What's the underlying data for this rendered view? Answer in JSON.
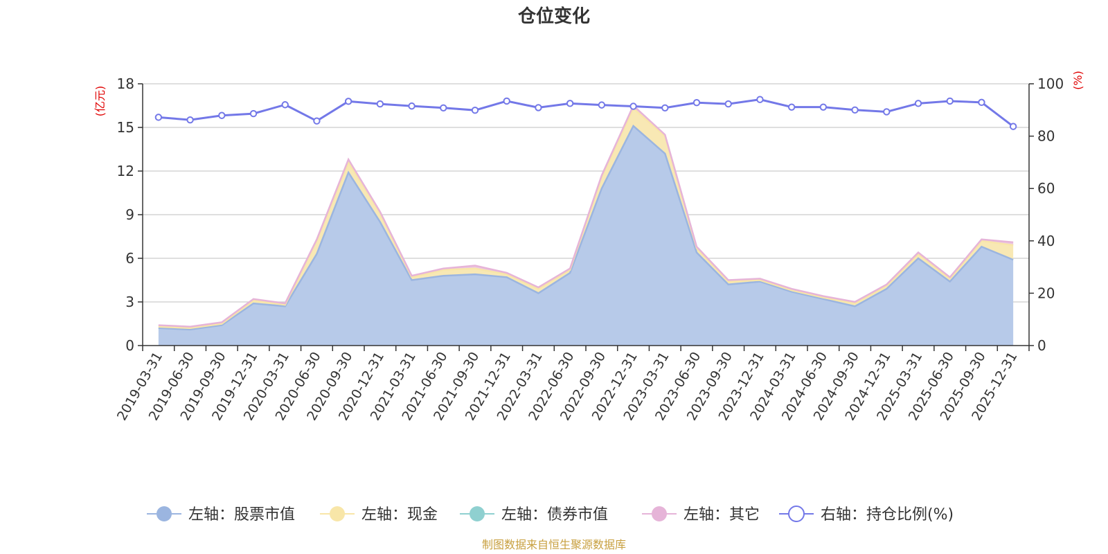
{
  "chart_data": {
    "type": "area",
    "title": "仓位变化",
    "y_left_unit": "(亿元)",
    "y_right_unit": "(%)",
    "y_left_range": [
      0,
      18
    ],
    "y_left_ticks": [
      "0",
      "3",
      "6",
      "9",
      "12",
      "15",
      "18"
    ],
    "y_right_range": [
      0,
      100
    ],
    "y_right_ticks": [
      "0",
      "20",
      "40",
      "60",
      "80",
      "100"
    ],
    "grid": true,
    "legend_position": "bottom",
    "categories": [
      "2019-03-31",
      "2019-06-30",
      "2019-09-30",
      "2019-12-31",
      "2020-03-31",
      "2020-06-30",
      "2020-09-30",
      "2020-12-31",
      "2021-03-31",
      "2021-06-30",
      "2021-09-30",
      "2021-12-31",
      "2022-03-31",
      "2022-06-30",
      "2022-09-30",
      "2022-12-31",
      "2023-03-31",
      "2023-06-30",
      "2023-09-30",
      "2023-12-31",
      "2024-03-31",
      "2024-06-30",
      "2024-09-30",
      "2024-12-31",
      "2025-03-31",
      "2025-06-30",
      "2025-09-30",
      "2025-12-31"
    ],
    "series": [
      {
        "name": "左轴：股票市值",
        "axis": "left",
        "color": "#9bb5e0",
        "fill": "#b7cae9",
        "values": [
          1.2,
          1.1,
          1.4,
          2.9,
          2.7,
          6.3,
          11.9,
          8.5,
          4.5,
          4.8,
          4.9,
          4.7,
          3.6,
          5.0,
          10.8,
          15.1,
          13.2,
          6.4,
          4.2,
          4.4,
          3.7,
          3.2,
          2.7,
          3.9,
          6.0,
          4.4,
          6.8,
          5.9
        ]
      },
      {
        "name": "左轴：现金",
        "axis": "left",
        "color": "#f8e6a8",
        "fill": "#f8e8b4",
        "values": [
          0.1,
          0.1,
          0.1,
          0.2,
          0.1,
          0.9,
          0.7,
          0.6,
          0.2,
          0.4,
          0.4,
          0.2,
          0.3,
          0.2,
          0.8,
          1.2,
          1.2,
          0.3,
          0.2,
          0.1,
          0.1,
          0.1,
          0.2,
          0.2,
          0.3,
          0.2,
          0.4,
          1.0
        ]
      },
      {
        "name": "左轴：债券市值",
        "axis": "left",
        "color": "#8fd0d0",
        "fill": "#a8dcdc",
        "values": [
          0,
          0,
          0,
          0,
          0,
          0,
          0,
          0,
          0,
          0,
          0,
          0,
          0,
          0,
          0,
          0,
          0,
          0,
          0,
          0,
          0,
          0,
          0,
          0,
          0,
          0,
          0,
          0
        ]
      },
      {
        "name": "左轴：其它",
        "axis": "left",
        "color": "#e6b4d8",
        "fill": "#ecc8e0",
        "values": [
          0.1,
          0.1,
          0.1,
          0.1,
          0.1,
          0.1,
          0.2,
          0.1,
          0.1,
          0.1,
          0.2,
          0.1,
          0.1,
          0.1,
          0.1,
          0.2,
          0.1,
          0.1,
          0.1,
          0.1,
          0.1,
          0.1,
          0.1,
          0.1,
          0.1,
          0.1,
          0.1,
          0.2
        ]
      },
      {
        "name": "右轴：持仓比例(%)",
        "axis": "right",
        "color": "#7378e8",
        "values": [
          87.2,
          86.2,
          87.9,
          88.6,
          92.0,
          85.8,
          93.3,
          92.3,
          91.5,
          90.8,
          89.9,
          93.4,
          90.9,
          92.5,
          91.9,
          91.4,
          90.8,
          92.8,
          92.3,
          94.0,
          91.1,
          91.1,
          90.0,
          89.3,
          92.5,
          93.4,
          92.9,
          83.7
        ]
      }
    ]
  },
  "source_note": "制图数据来自恒生聚源数据库"
}
